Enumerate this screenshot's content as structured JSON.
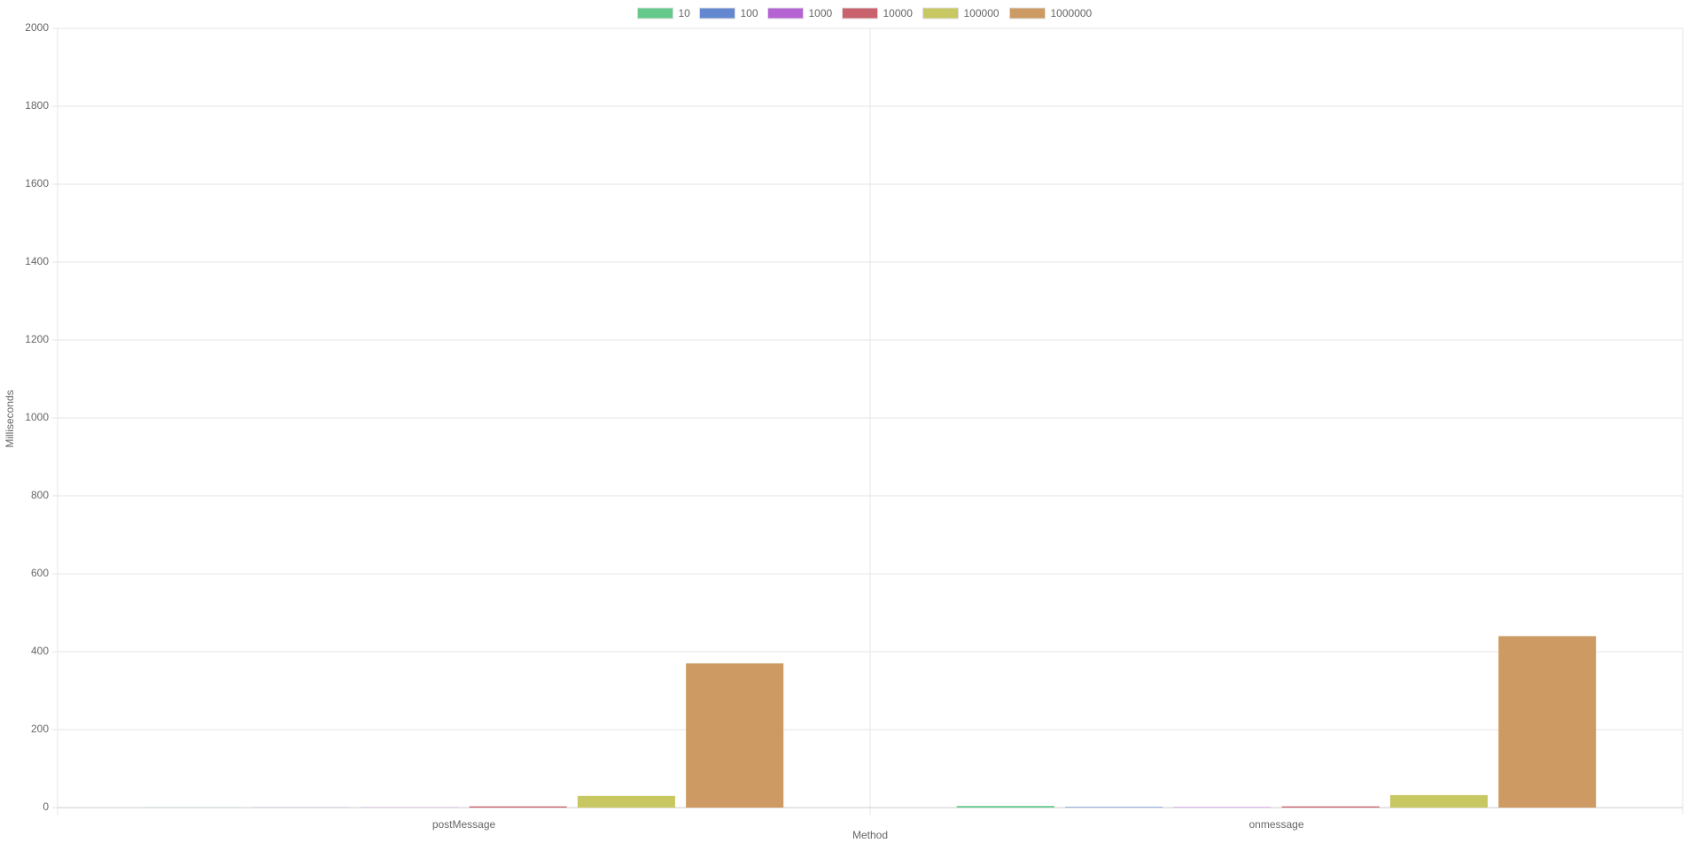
{
  "chart_data": {
    "type": "bar",
    "x_label": "Method",
    "y_label": "Milliseconds",
    "categories": [
      "postMessage",
      "onmessage"
    ],
    "series": [
      {
        "name": "10",
        "color": "#64c98a",
        "values": [
          0.3,
          4
        ]
      },
      {
        "name": "100",
        "color": "#6488d0",
        "values": [
          0.3,
          1.5
        ]
      },
      {
        "name": "1000",
        "color": "#b562d3",
        "values": [
          0.5,
          1
        ]
      },
      {
        "name": "10000",
        "color": "#c9626c",
        "values": [
          3,
          3
        ]
      },
      {
        "name": "100000",
        "color": "#c8c862",
        "values": [
          30,
          32
        ]
      },
      {
        "name": "1000000",
        "color": "#cc9a62",
        "values": [
          370,
          440
        ]
      }
    ],
    "ylim": [
      0,
      2000
    ],
    "yticks": [
      0,
      200,
      400,
      600,
      800,
      1000,
      1200,
      1400,
      1600,
      1800,
      2000
    ],
    "grid": true,
    "legend": "top"
  }
}
